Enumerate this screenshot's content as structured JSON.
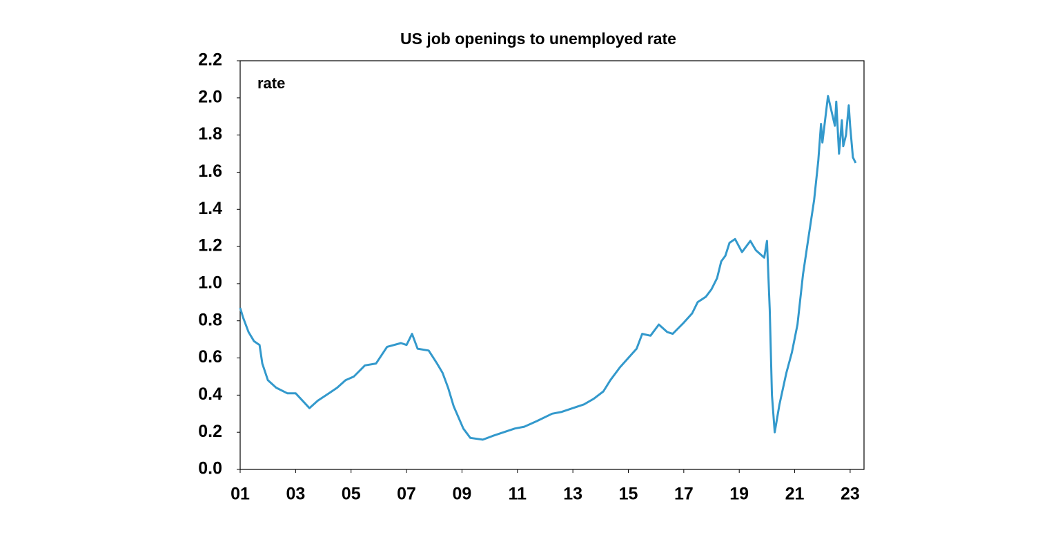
{
  "chart_data": {
    "type": "line",
    "title": "US job openings to unemployed rate",
    "annotation": "rate",
    "x": [
      2001.0,
      2001.1,
      2001.3,
      2001.5,
      2001.7,
      2001.8,
      2002.0,
      2002.3,
      2002.7,
      2003.0,
      2003.5,
      2003.8,
      2004.2,
      2004.5,
      2004.8,
      2005.1,
      2005.5,
      2005.9,
      2006.3,
      2006.8,
      2007.0,
      2007.2,
      2007.4,
      2007.8,
      2008.1,
      2008.3,
      2008.5,
      2008.7,
      2009.05,
      2009.3,
      2009.75,
      2010.1,
      2010.5,
      2010.9,
      2011.25,
      2011.7,
      2012.25,
      2012.6,
      2013.0,
      2013.4,
      2013.75,
      2014.1,
      2014.35,
      2014.7,
      2015.0,
      2015.3,
      2015.5,
      2015.8,
      2016.1,
      2016.4,
      2016.6,
      2016.8,
      2017.0,
      2017.3,
      2017.5,
      2017.8,
      2018.0,
      2018.2,
      2018.35,
      2018.5,
      2018.65,
      2018.85,
      2019.1,
      2019.4,
      2019.6,
      2019.9,
      2020.0,
      2020.1,
      2020.18,
      2020.28,
      2020.45,
      2020.7,
      2020.9,
      2021.1,
      2021.3,
      2021.5,
      2021.7,
      2021.85,
      2021.95,
      2022.0,
      2022.2,
      2022.45,
      2022.5,
      2022.6,
      2022.7,
      2022.75,
      2022.85,
      2022.95,
      2023.0,
      2023.1,
      2023.2
    ],
    "series": [
      {
        "name": "rate",
        "color": "#3399cc",
        "values": [
          0.87,
          0.82,
          0.74,
          0.69,
          0.67,
          0.57,
          0.48,
          0.44,
          0.41,
          0.41,
          0.33,
          0.37,
          0.41,
          0.44,
          0.48,
          0.5,
          0.56,
          0.57,
          0.66,
          0.68,
          0.67,
          0.73,
          0.65,
          0.64,
          0.57,
          0.52,
          0.44,
          0.34,
          0.22,
          0.17,
          0.16,
          0.18,
          0.2,
          0.22,
          0.23,
          0.26,
          0.3,
          0.31,
          0.33,
          0.35,
          0.38,
          0.42,
          0.48,
          0.55,
          0.6,
          0.65,
          0.73,
          0.72,
          0.78,
          0.74,
          0.73,
          0.76,
          0.79,
          0.84,
          0.9,
          0.93,
          0.97,
          1.03,
          1.12,
          1.15,
          1.22,
          1.24,
          1.17,
          1.23,
          1.18,
          1.14,
          1.23,
          0.86,
          0.4,
          0.2,
          0.35,
          0.52,
          0.63,
          0.78,
          1.05,
          1.25,
          1.45,
          1.66,
          1.86,
          1.76,
          2.01,
          1.85,
          1.98,
          1.7,
          1.88,
          1.74,
          1.8,
          1.96,
          1.85,
          1.68,
          1.65
        ]
      }
    ],
    "xlim": [
      2001,
      2023.5
    ],
    "xticks": [
      {
        "value": 2001,
        "label": "01"
      },
      {
        "value": 2003,
        "label": "03"
      },
      {
        "value": 2005,
        "label": "05"
      },
      {
        "value": 2007,
        "label": "07"
      },
      {
        "value": 2009,
        "label": "09"
      },
      {
        "value": 2011,
        "label": "11"
      },
      {
        "value": 2013,
        "label": "13"
      },
      {
        "value": 2015,
        "label": "15"
      },
      {
        "value": 2017,
        "label": "17"
      },
      {
        "value": 2019,
        "label": "19"
      },
      {
        "value": 2021,
        "label": "21"
      },
      {
        "value": 2023,
        "label": "23"
      }
    ],
    "ylim": [
      0,
      2.2
    ],
    "yticks": [
      {
        "value": 0,
        "label": "0.0"
      },
      0.2,
      0.4,
      0.6,
      0.8,
      {
        "value": 1,
        "label": "1.0"
      },
      1.2,
      1.4,
      1.6,
      1.8,
      {
        "value": 2,
        "label": "2.0"
      },
      2.2
    ],
    "grid": false
  }
}
